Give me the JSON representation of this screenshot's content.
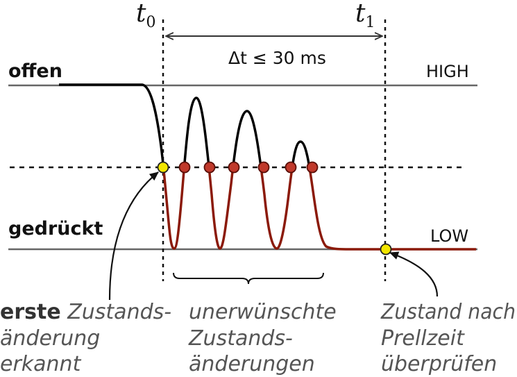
{
  "labels": {
    "t0_base": "t",
    "t0_sub": "0",
    "t1_base": "t",
    "t1_sub": "1",
    "delta": "Δt ≤ 30 ms",
    "offen": "offen",
    "gedrueckt": "gedrückt",
    "high": "HIGH",
    "low": "LOW"
  },
  "annotations": {
    "first_bold": "erste",
    "first_rest": " Zustands-",
    "first_line2": "änderung",
    "first_line3": "erkannt",
    "unwanted_line1": "unerwünschte",
    "unwanted_line2": "Zustands-",
    "unwanted_line3": "änderungen",
    "check_line1": "Zustand nach",
    "check_line2": "Prellzeit",
    "check_line3": "überprüfen"
  },
  "colors": {
    "signal_high": "#000000",
    "signal_low": "#8b1a0a",
    "crossing_marker": "#c0392b",
    "key_marker": "#f2e600",
    "level_line": "#666666"
  }
}
